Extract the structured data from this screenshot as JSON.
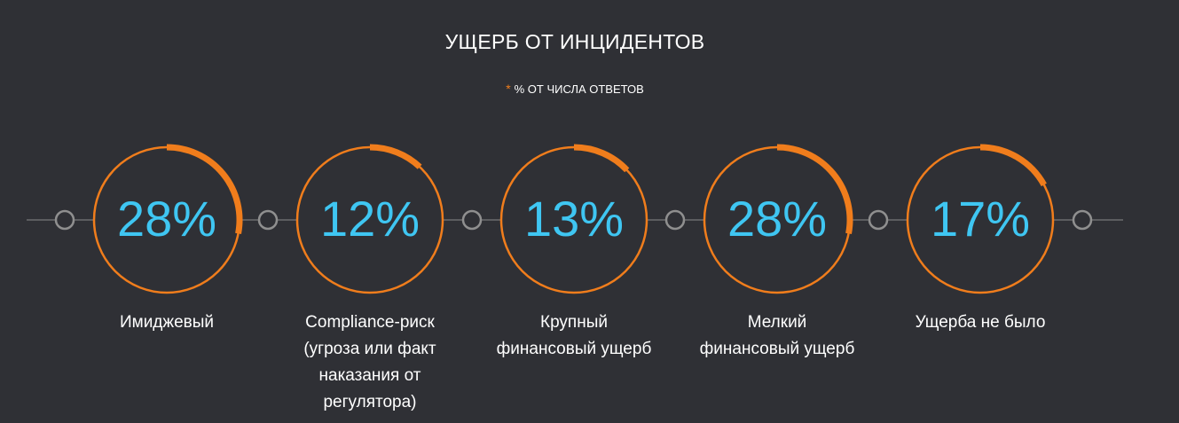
{
  "chart_data": {
    "type": "donut",
    "title": "УЩЕРБ ОТ ИНЦИДЕНТОВ",
    "subtitle_marker": "*",
    "subtitle": "% ОТ ЧИСЛА ОТВЕТОВ",
    "categories": [
      "Имиджевый",
      "Compliance-риск (угроза или факт наказания от регулятора)",
      "Крупный финансовый ущерб",
      "Мелкий финансовый ущерб",
      "Ущерба не было"
    ],
    "category_lines": [
      [
        "Имиджевый"
      ],
      [
        "Compliance-риск",
        "(угроза или факт",
        "наказания от",
        "регулятора)"
      ],
      [
        "Крупный",
        "финансовый ущерб"
      ],
      [
        "Мелкий",
        "финансовый ущерб"
      ],
      [
        "Ущерба не было"
      ]
    ],
    "values": [
      28,
      12,
      13,
      28,
      17
    ],
    "value_labels": [
      "28%",
      "12%",
      "13%",
      "28%",
      "17%"
    ],
    "unit": "%"
  },
  "colors": {
    "background": "#2f3035",
    "ring": "#f07d1c",
    "value_text": "#3fc6f2",
    "label_text": "#ffffff",
    "connector_line": "#8a8a8a",
    "node_outline": "#8f8f8f"
  }
}
